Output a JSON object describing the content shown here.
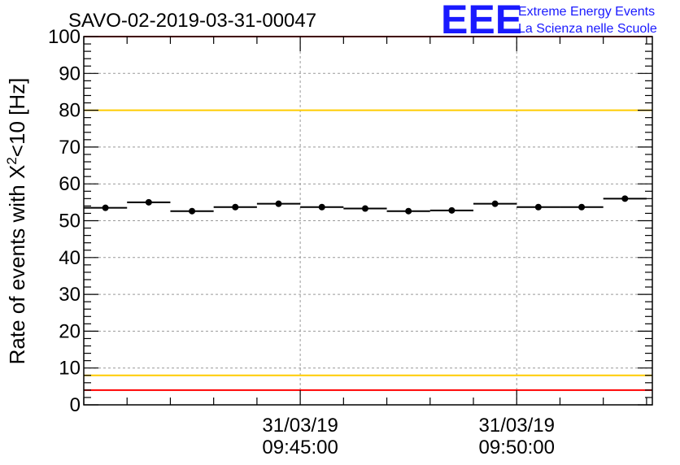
{
  "header": {
    "title": "SAVO-02-2019-03-31-00047",
    "logo_mark": "EEE",
    "logo_line1": "Extreme Energy Events",
    "logo_line2": "La Scienza nelle Scuole"
  },
  "colors": {
    "logo": "#1a1aff",
    "red_line": "#ff0000",
    "yellow_line": "#ffcc00",
    "grid": "#999999",
    "data": "#000000"
  },
  "chart_data": {
    "type": "scatter",
    "title": "SAVO-02-2019-03-31-00047",
    "xlabel": "",
    "ylabel": "Rate of events with X^2<10 [Hz]",
    "ylabel_parts": {
      "prefix": "Rate of events with X",
      "superscript": "2",
      "suffix": "<10 [Hz]"
    },
    "ylim": [
      0,
      100
    ],
    "yticks": [
      0,
      10,
      20,
      30,
      40,
      50,
      60,
      70,
      80,
      90,
      100
    ],
    "xlim_seconds": [
      0,
      788
    ],
    "xticks": [
      {
        "t": 300,
        "date": "31/03/19",
        "time": "09:45:00"
      },
      {
        "t": 600,
        "date": "31/03/19",
        "time": "09:50:00"
      }
    ],
    "bin_width_seconds": 60,
    "points": [
      {
        "t": 30,
        "value": 53.5
      },
      {
        "t": 90,
        "value": 55.0
      },
      {
        "t": 150,
        "value": 52.6
      },
      {
        "t": 210,
        "value": 53.7
      },
      {
        "t": 270,
        "value": 54.6
      },
      {
        "t": 330,
        "value": 53.7
      },
      {
        "t": 390,
        "value": 53.3
      },
      {
        "t": 450,
        "value": 52.6
      },
      {
        "t": 510,
        "value": 52.8
      },
      {
        "t": 570,
        "value": 54.6
      },
      {
        "t": 630,
        "value": 53.7
      },
      {
        "t": 690,
        "value": 53.7
      },
      {
        "t": 750,
        "value": 56.0
      }
    ],
    "reference_lines": [
      {
        "value": 100,
        "color": "#ff0000"
      },
      {
        "value": 80,
        "color": "#ffcc00"
      },
      {
        "value": 8,
        "color": "#ffcc00"
      },
      {
        "value": 4,
        "color": "#ff0000"
      }
    ],
    "grid": true,
    "legend": "none"
  }
}
